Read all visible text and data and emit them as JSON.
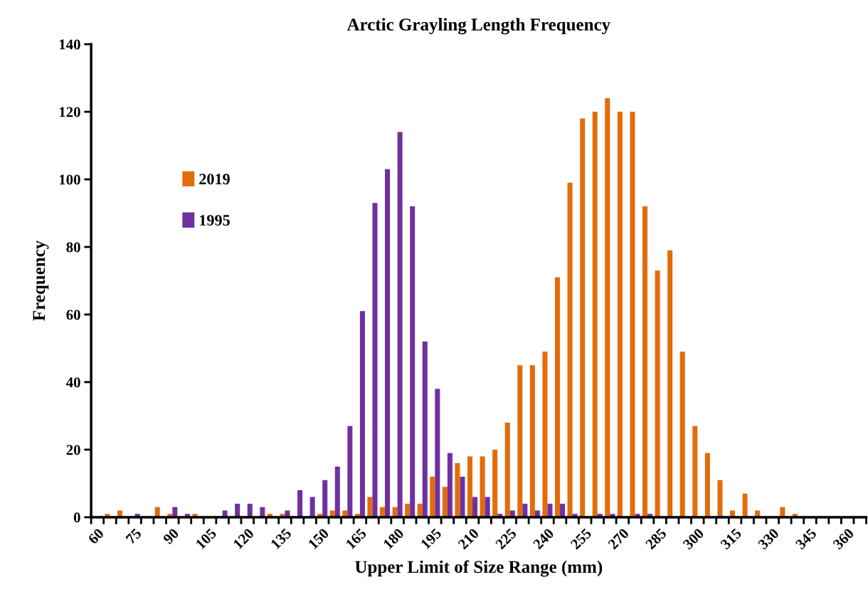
{
  "chart_data": {
    "type": "bar",
    "title": "Arctic Grayling Length Frequency",
    "xlabel": "Upper Limit of Size Range (mm)",
    "ylabel": "Frequency",
    "categories": [
      "60",
      null,
      null,
      "75",
      null,
      null,
      "90",
      null,
      null,
      "105",
      null,
      null,
      "120",
      null,
      null,
      "135",
      null,
      null,
      "150",
      null,
      null,
      "165",
      null,
      null,
      "180",
      null,
      null,
      "195",
      null,
      null,
      "210",
      null,
      null,
      "225",
      null,
      null,
      "240",
      null,
      null,
      "255",
      null,
      null,
      "270",
      null,
      null,
      "285",
      null,
      null,
      "300",
      null,
      null,
      "315",
      null,
      null,
      "330",
      null,
      null,
      "345",
      null,
      null,
      "360",
      null
    ],
    "series": [
      {
        "name": "2019",
        "color": "#e36c0a",
        "values": [
          0,
          1,
          2,
          0,
          0,
          3,
          1,
          0,
          1,
          0,
          0,
          0,
          0,
          0,
          1,
          1,
          0,
          0,
          1,
          2,
          2,
          1,
          6,
          3,
          3,
          4,
          4,
          12,
          9,
          16,
          18,
          18,
          20,
          28,
          45,
          45,
          49,
          71,
          99,
          118,
          120,
          124,
          120,
          120,
          92,
          73,
          79,
          49,
          27,
          19,
          11,
          2,
          7,
          2,
          0,
          3,
          1,
          0,
          0,
          0,
          0,
          0
        ]
      },
      {
        "name": "1995",
        "color": "#7030a0",
        "values": [
          0,
          0,
          0,
          1,
          0,
          0,
          3,
          1,
          0,
          0,
          2,
          4,
          4,
          3,
          0,
          2,
          8,
          6,
          11,
          15,
          27,
          61,
          93,
          103,
          114,
          92,
          52,
          38,
          19,
          12,
          6,
          6,
          1,
          2,
          4,
          2,
          4,
          4,
          1,
          0,
          1,
          1,
          0,
          1,
          1,
          0,
          0,
          0,
          0,
          0,
          0,
          0,
          0,
          0,
          0,
          0,
          0,
          0,
          0,
          0,
          0,
          0
        ]
      }
    ],
    "ylim": [
      0,
      140
    ],
    "yticks": [
      0,
      20,
      40,
      60,
      80,
      100,
      120,
      140
    ],
    "grid": false,
    "legend": "left"
  }
}
